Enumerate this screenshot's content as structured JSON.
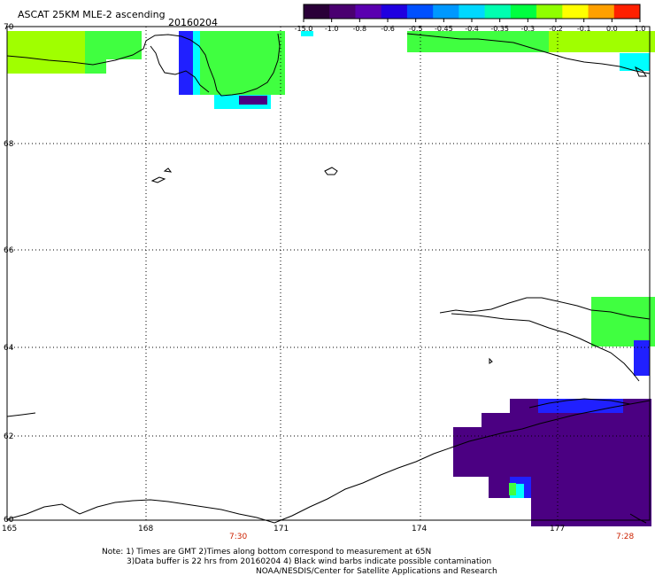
{
  "header": {
    "title": "ASCAT 25KM MLE-2 ascending",
    "date": "20160204"
  },
  "colorbar": {
    "labels": [
      "-15.0",
      "-1.0",
      "-0.8",
      "-0.6",
      "-0.5",
      "-0.45",
      "-0.4",
      "-0.35",
      "-0.3",
      "-0.2",
      "-0.1",
      "0.0",
      "1.0"
    ],
    "colors": [
      "#2a0038",
      "#4a0070",
      "#5a00b0",
      "#2000e0",
      "#0050ff",
      "#0098ff",
      "#00d8ff",
      "#00ffb0",
      "#00ff40",
      "#90ff00",
      "#ffff00",
      "#ffa000",
      "#ff2000"
    ]
  },
  "map": {
    "lat_labels": [
      "70",
      "68",
      "66",
      "64",
      "62",
      "60"
    ],
    "lon_labels": [
      "165",
      "168",
      "171",
      "174",
      "177"
    ],
    "time_labels": [
      "7:30",
      "7:28"
    ],
    "time_color": "#cc2200",
    "palette": {
      "green": "#40ff40",
      "yellowgreen": "#a0ff00",
      "cyan": "#00ffff",
      "blue": "#2020ff",
      "purple": "#4b0082",
      "dark_purple": "#3a0058"
    }
  },
  "footer": {
    "note1": "Note: 1) Times are GMT 2)Times along bottom correspond to measurement at 65N",
    "note2": "3)Data buffer is 22 hrs from 20160204 4) Black wind barbs indicate possible contamination",
    "credit": "NOAA/NESDIS/Center for Satellite Applications and Research"
  }
}
